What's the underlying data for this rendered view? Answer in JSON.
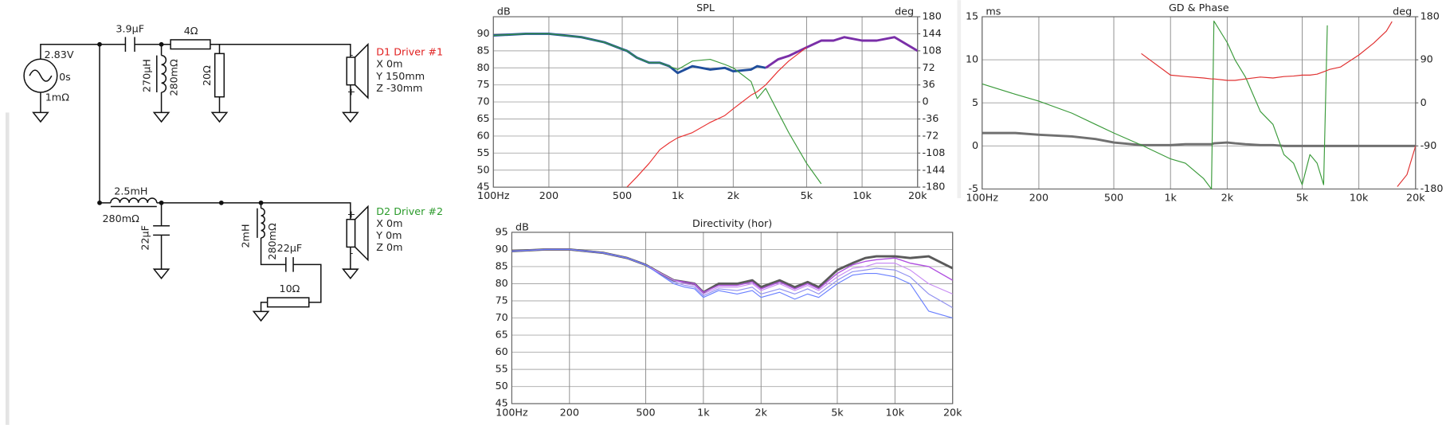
{
  "schematic": {
    "source": {
      "voltage": "2.83V",
      "delay": "0s",
      "resistance": "1mΩ"
    },
    "c1": "3.9µF",
    "r1": "4Ω",
    "l1": {
      "value": "270µH",
      "resistance": "280mΩ"
    },
    "r2": "20Ω",
    "l2": {
      "value": "2.5mH",
      "resistance": "280mΩ"
    },
    "c2": "22µF",
    "l3": {
      "value": "2mH",
      "resistance": "280mΩ"
    },
    "c3": "22µF",
    "r3": "10Ω",
    "drivers": [
      {
        "name": "D1 Driver #1",
        "x": "X 0m",
        "y": "Y 150mm",
        "z": "Z -30mm",
        "top": "-",
        "bottom": "+"
      },
      {
        "name": "D2 Driver #2",
        "x": "X 0m",
        "y": "Y 0m",
        "z": "Z 0m",
        "top": "+",
        "bottom": "-"
      }
    ]
  },
  "chart_data": [
    {
      "type": "line",
      "title": "SPL",
      "ylabel": "dB",
      "y2label": "deg",
      "xscale": "log",
      "grid": true,
      "x": [
        100,
        150,
        200,
        300,
        400,
        500,
        530,
        600,
        700,
        800,
        900,
        1000,
        1200,
        1500,
        1800,
        2000,
        2500,
        2700,
        3000,
        3500,
        4000,
        5000,
        6000,
        7000,
        8000,
        10000,
        12000,
        15000,
        20000
      ],
      "xlim": [
        100,
        20000
      ],
      "xticks": [
        {
          "value": 100,
          "label": "100Hz"
        },
        200,
        500,
        {
          "value": 1000,
          "label": "1k"
        },
        {
          "value": 2000,
          "label": "2k"
        },
        {
          "value": 5000,
          "label": "5k"
        },
        {
          "value": 10000,
          "label": "10k"
        },
        {
          "value": 20000,
          "label": "20k"
        }
      ],
      "ylim": [
        45,
        95
      ],
      "yticks": [
        45,
        50,
        55,
        60,
        65,
        70,
        75,
        80,
        85,
        90
      ],
      "y2lim": [
        -180,
        180
      ],
      "y2ticks": [
        -180,
        -144,
        -108,
        -72,
        -36,
        0,
        36,
        72,
        108,
        144,
        180
      ],
      "series": [
        {
          "color": "#1f4e9c",
          "values": [
            89.5,
            90,
            90,
            89,
            87.5,
            85.5,
            85,
            83,
            81.5,
            81.5,
            80.5,
            78.5,
            80.5,
            79.5,
            80,
            79,
            79.5,
            80.5,
            80,
            null,
            null,
            null,
            null,
            null,
            null,
            null,
            null,
            null,
            null
          ]
        },
        {
          "color": "#7a2fa8",
          "values": [
            null,
            null,
            null,
            null,
            null,
            null,
            null,
            null,
            null,
            null,
            null,
            null,
            null,
            null,
            null,
            null,
            null,
            null,
            80,
            82.5,
            83.5,
            86,
            88,
            88,
            89,
            88,
            88,
            89,
            85
          ]
        },
        {
          "color": "#3a9a3a",
          "values": [
            89.5,
            90,
            90,
            89,
            87.5,
            85.5,
            85,
            83,
            81.5,
            81.5,
            80.5,
            79.5,
            82,
            82.5,
            81,
            80,
            76,
            71,
            74,
            67,
            61,
            52,
            46,
            null,
            null,
            null,
            null,
            null,
            null
          ]
        },
        {
          "color": "#e83030",
          "values": [
            null,
            null,
            null,
            null,
            null,
            null,
            45,
            48,
            52,
            56,
            58,
            59.5,
            61,
            64,
            66,
            68,
            72,
            73,
            75,
            79,
            82,
            86,
            null,
            null,
            null,
            null,
            null,
            null,
            null
          ]
        }
      ]
    },
    {
      "type": "line",
      "title": "GD & Phase",
      "ylabel": "ms",
      "y2label": "deg",
      "xscale": "log",
      "grid": true,
      "x": [
        100,
        150,
        200,
        300,
        400,
        500,
        700,
        1000,
        1200,
        1500,
        1650,
        1700,
        2000,
        2200,
        2500,
        3000,
        3500,
        4000,
        4500,
        5000,
        5500,
        6000,
        6500,
        6800,
        7000,
        8000,
        10000,
        12000,
        14000,
        15000,
        15500,
        16000,
        18000,
        20000
      ],
      "xlim": [
        100,
        20000
      ],
      "xticks": [
        {
          "value": 100,
          "label": "100Hz"
        },
        200,
        500,
        {
          "value": 1000,
          "label": "1k"
        },
        {
          "value": 2000,
          "label": "2k"
        },
        {
          "value": 5000,
          "label": "5k"
        },
        {
          "value": 10000,
          "label": "10k"
        },
        {
          "value": 20000,
          "label": "20k"
        }
      ],
      "ylim": [
        -5,
        15
      ],
      "yticks": [
        -5,
        0,
        5,
        10,
        15
      ],
      "y2lim": [
        -180,
        180
      ],
      "y2ticks": [
        -180,
        -90,
        0,
        90,
        180
      ],
      "series": [
        {
          "color": "#707070",
          "values": [
            1.5,
            1.5,
            1.3,
            1.1,
            0.8,
            0.4,
            0.1,
            0.1,
            0.2,
            0.2,
            0.2,
            0.3,
            0.4,
            0.3,
            0.2,
            0.1,
            0.1,
            0,
            0,
            0,
            0,
            0,
            0,
            0,
            0,
            0,
            0,
            0,
            0,
            0,
            0,
            0,
            0,
            0
          ]
        },
        {
          "color": "#3a9a3a",
          "values": [
            7.2,
            6,
            5.2,
            3.8,
            2.5,
            1.5,
            0.1,
            -1.5,
            -2,
            -3.8,
            -5,
            14.5,
            12,
            10,
            8,
            4,
            2.5,
            -1,
            -2,
            -4.5,
            -1,
            -2,
            -4.5,
            14,
            null,
            null,
            null,
            null,
            null,
            null,
            null,
            null,
            null,
            null
          ]
        },
        {
          "color": "#e03030",
          "axis": "y2",
          "values": [
            null,
            null,
            null,
            null,
            null,
            null,
            103,
            58,
            55,
            52,
            50,
            50,
            47,
            47,
            50,
            54,
            52,
            55,
            56,
            58,
            58,
            60,
            65,
            68,
            70,
            75,
            100,
            125,
            150,
            170,
            null,
            -175,
            -150,
            -90
          ]
        }
      ]
    },
    {
      "type": "line",
      "title": "Directivity (hor)",
      "ylabel": "dB",
      "xscale": "log",
      "grid": true,
      "x": [
        100,
        150,
        200,
        300,
        400,
        500,
        600,
        700,
        800,
        900,
        1000,
        1200,
        1500,
        1800,
        2000,
        2500,
        3000,
        3500,
        4000,
        5000,
        6000,
        7000,
        8000,
        10000,
        12000,
        15000,
        20000
      ],
      "xlim": [
        100,
        20000
      ],
      "xticks": [
        {
          "value": 100,
          "label": "100Hz"
        },
        200,
        500,
        {
          "value": 1000,
          "label": "1k"
        },
        {
          "value": 2000,
          "label": "2k"
        },
        {
          "value": 5000,
          "label": "5k"
        },
        {
          "value": 10000,
          "label": "10k"
        },
        {
          "value": 20000,
          "label": "20k"
        }
      ],
      "ylim": [
        45,
        95
      ],
      "yticks": [
        45,
        50,
        55,
        60,
        65,
        70,
        75,
        80,
        85,
        90,
        95
      ],
      "series": [
        {
          "color": "#5a5a5a",
          "values": [
            89.5,
            90,
            90,
            89,
            87.5,
            85.5,
            83,
            81,
            80.5,
            80,
            77.5,
            80,
            80,
            81,
            79,
            81,
            79,
            80.5,
            79,
            84,
            86,
            87.5,
            88,
            88,
            87.5,
            88,
            84.5
          ]
        },
        {
          "color": "#b050e0",
          "values": [
            89.5,
            90,
            90,
            89,
            87.5,
            85.5,
            83,
            81,
            80.5,
            80,
            77.5,
            79.5,
            79.5,
            80.5,
            78.5,
            80.5,
            78.5,
            80,
            78.5,
            83,
            85.5,
            86.5,
            87,
            87.5,
            86,
            85,
            81
          ]
        },
        {
          "color": "#c88cf4",
          "values": [
            89.5,
            90,
            90,
            89,
            87.5,
            85.5,
            83,
            81,
            80,
            79.5,
            77,
            79,
            79,
            80,
            78,
            80,
            78,
            79.5,
            78,
            82,
            84.5,
            85,
            86,
            86,
            84,
            80,
            77
          ]
        },
        {
          "color": "#9090f0",
          "values": [
            89.5,
            90,
            90,
            89,
            87.5,
            85.5,
            82.5,
            80.5,
            79.5,
            79,
            76.5,
            78.5,
            78,
            79,
            77,
            78.5,
            77,
            78.5,
            77,
            81,
            83.5,
            84,
            84.5,
            84,
            82,
            77,
            73
          ]
        },
        {
          "color": "#6a80ff",
          "values": [
            89.5,
            90,
            90,
            89,
            87.5,
            85.5,
            82.5,
            80,
            79,
            78.5,
            76,
            78,
            77,
            78,
            76,
            77.5,
            75.5,
            77,
            76,
            80,
            82.5,
            83,
            83,
            82,
            80,
            72,
            70
          ]
        }
      ]
    }
  ]
}
